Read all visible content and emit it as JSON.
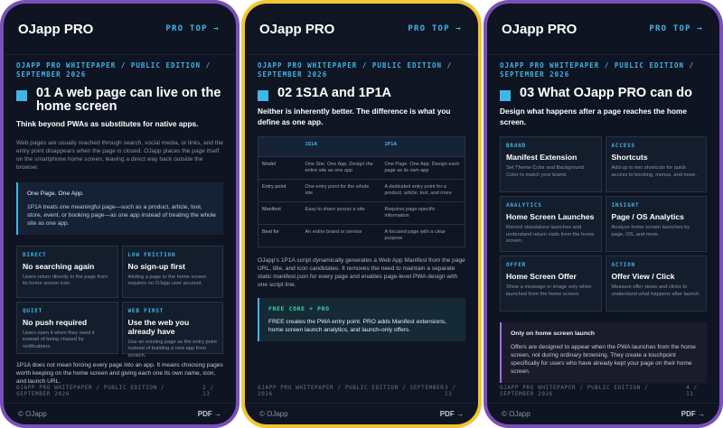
{
  "brand": "OJapp PRO",
  "protop": "PRO TOP →",
  "eyebrow": "OJAPP PRO WHITEPAPER / PUBLIC EDITION / SEPTEMBER 2026",
  "footer_left": "OJAPP PRO WHITEPAPER / PUBLIC EDITION / SEPTEMBER 2026",
  "copyright": "© OJapp",
  "pdf": "PDF →",
  "colors": {
    "accent": "#3fb6e6",
    "frame_purple": "#7b4fb8",
    "frame_yellow": "#f2c531",
    "green": "#3fd1a0",
    "violet": "#a36fe0"
  },
  "page1": {
    "title": "01 A web page can live on the home screen",
    "lead": "Think beyond PWAs as substitutes for native apps.",
    "para": "Web pages are usually reached through search, social media, or links, and the entry point disappears when the page is closed. OJapp places the page itself on the smartphone home screen, leaving a direct way back outside the browser.",
    "callout_title": "One Page. One App.",
    "callout_body": "1P1A treats one meaningful page—such as a product, article, tool, store, event, or booking page—as one app instead of treating the whole site as one app.",
    "cards": [
      {
        "tag": "DIRECT",
        "title": "No searching again",
        "desc": "Users return directly to the page from its home screen icon."
      },
      {
        "tag": "LOW FRICTION",
        "title": "No sign-up first",
        "desc": "Adding a page to the home screen requires no OJapp user account."
      },
      {
        "tag": "QUIET",
        "title": "No push required",
        "desc": "Users open it when they need it instead of being chased by notifications."
      },
      {
        "tag": "WEB FIRST",
        "title": "Use the web you already have",
        "desc": "Use an existing page as the entry point instead of building a new app from scratch."
      }
    ],
    "note": "1P1A does not mean forcing every page into an app. It means choosing pages worth keeping on the home screen and giving each one its own name, icon, and launch URL.",
    "page_num": "2 / 13"
  },
  "page2": {
    "title": "02 1S1A and 1P1A",
    "lead": "Neither is inherently better. The difference is what you define as one app.",
    "table": {
      "headers": [
        "",
        "1S1A",
        "1P1A"
      ],
      "rows": [
        [
          "Model",
          "One Site. One App. Design the entire site as one app",
          "One Page. One App. Design each page as its own app"
        ],
        [
          "Entry point",
          "One entry point for the whole site",
          "A dedicated entry point for a product, article, tool, and more"
        ],
        [
          "Manifest",
          "Easy to share across a site",
          "Requires page-specific information"
        ],
        [
          "Best for",
          "An entire brand or service",
          "A focused page with a clear purpose"
        ]
      ]
    },
    "para": "OJapp's 1P1A script dynamically generates a Web App Manifest from the page URL, title, and icon candidates. It removes the need to maintain a separate static manifest.json for every page and enables page-level PWA design with one script line.",
    "callout_tag": "FREE CORE + PRO",
    "callout_body": "FREE creates the PWA entry point. PRO adds Manifest extensions, home screen launch analytics, and launch-only offers.",
    "page_num": "3 / 13"
  },
  "page3": {
    "title": "03 What OJapp PRO can do",
    "lead": "Design what happens after a page reaches the home screen.",
    "cards": [
      {
        "tag": "BRAND",
        "title": "Manifest Extension",
        "desc": "Set Theme Color and Background Color to match your brand."
      },
      {
        "tag": "ACCESS",
        "title": "Shortcuts",
        "desc": "Add up to two shortcuts for quick access to booking, menus, and more."
      },
      {
        "tag": "ANALYTICS",
        "title": "Home Screen Launches",
        "desc": "Record standalone launches and understand return visits from the home screen."
      },
      {
        "tag": "INSIGHT",
        "title": "Page / OS Analytics",
        "desc": "Analyze home screen launches by page, OS, and more."
      },
      {
        "tag": "OFFER",
        "title": "Home Screen Offer",
        "desc": "Show a message or image only when launched from the home screen."
      },
      {
        "tag": "ACTION",
        "title": "Offer View / Click",
        "desc": "Measure offer views and clicks to understand what happens after launch."
      }
    ],
    "callout_title": "Only on home screen launch",
    "callout_body": "Offers are designed to appear when the PWA launches from the home screen, not during ordinary browsing. They create a touchpoint specifically for users who have already kept your page on their home screen.",
    "page_num": "4 / 13"
  }
}
